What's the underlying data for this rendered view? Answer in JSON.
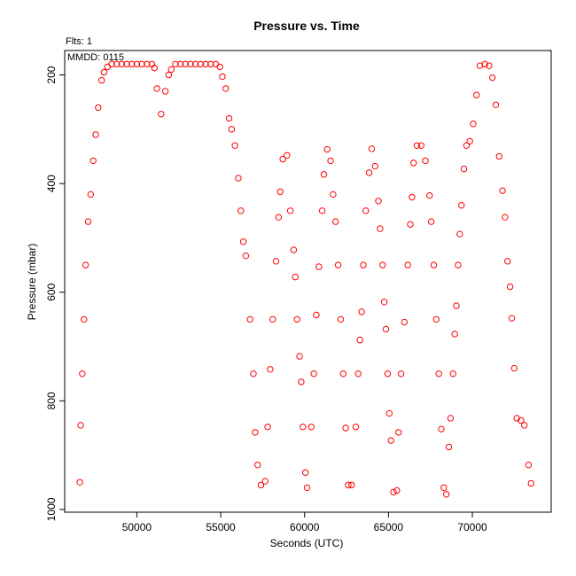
{
  "chart_data": {
    "type": "scatter",
    "title": "Pressure  vs. Time",
    "flts_label": "Flts: 1",
    "mmdd_label": "MMDD: 0115",
    "xlabel": "Seconds (UTC)",
    "ylabel": "Pressure (mbar)",
    "xlim": [
      45700,
      74700
    ],
    "ylim": [
      1005,
      155
    ],
    "y_inverted": true,
    "x_ticks": [
      50000,
      55000,
      60000,
      65000,
      70000
    ],
    "y_ticks": [
      200,
      400,
      600,
      800,
      1000
    ],
    "x_tick_labels": [
      "50000",
      "55000",
      "60000",
      "65000",
      "70000"
    ],
    "y_tick_labels": [
      "200",
      "400",
      "600",
      "800",
      "1000"
    ],
    "grid": false,
    "marker": "open-circle",
    "marker_color": "#ff0000",
    "points": [
      [
        46600,
        950
      ],
      [
        46650,
        845
      ],
      [
        46750,
        750
      ],
      [
        46850,
        650
      ],
      [
        46950,
        550
      ],
      [
        47100,
        470
      ],
      [
        47250,
        420
      ],
      [
        47400,
        358
      ],
      [
        47550,
        310
      ],
      [
        47700,
        260
      ],
      [
        47900,
        210
      ],
      [
        48050,
        195
      ],
      [
        48250,
        185
      ],
      [
        48500,
        180
      ],
      [
        48800,
        180
      ],
      [
        49100,
        180
      ],
      [
        49400,
        180
      ],
      [
        49700,
        180
      ],
      [
        50000,
        180
      ],
      [
        50300,
        180
      ],
      [
        50600,
        180
      ],
      [
        50900,
        180
      ],
      [
        51050,
        187
      ],
      [
        51200,
        225
      ],
      [
        51450,
        272
      ],
      [
        51700,
        230
      ],
      [
        51900,
        200
      ],
      [
        52050,
        190
      ],
      [
        52300,
        180
      ],
      [
        52600,
        180
      ],
      [
        52900,
        180
      ],
      [
        53200,
        180
      ],
      [
        53500,
        180
      ],
      [
        53800,
        180
      ],
      [
        54100,
        180
      ],
      [
        54400,
        180
      ],
      [
        54700,
        180
      ],
      [
        54950,
        185
      ],
      [
        55100,
        203
      ],
      [
        55300,
        225
      ],
      [
        55500,
        280
      ],
      [
        55650,
        300
      ],
      [
        55850,
        330
      ],
      [
        56050,
        390
      ],
      [
        56200,
        450
      ],
      [
        56350,
        507
      ],
      [
        56500,
        533
      ],
      [
        56750,
        650
      ],
      [
        56950,
        750
      ],
      [
        57050,
        858
      ],
      [
        57200,
        918
      ],
      [
        57400,
        955
      ],
      [
        57650,
        948
      ],
      [
        57800,
        848
      ],
      [
        57950,
        742
      ],
      [
        58100,
        650
      ],
      [
        58300,
        543
      ],
      [
        58450,
        462
      ],
      [
        58550,
        415
      ],
      [
        58700,
        355
      ],
      [
        58950,
        348
      ],
      [
        59150,
        450
      ],
      [
        59350,
        522
      ],
      [
        59450,
        572
      ],
      [
        59550,
        650
      ],
      [
        59700,
        718
      ],
      [
        59800,
        765
      ],
      [
        59900,
        848
      ],
      [
        60050,
        932
      ],
      [
        60150,
        960
      ],
      [
        60400,
        848
      ],
      [
        60550,
        750
      ],
      [
        60700,
        642
      ],
      [
        60850,
        553
      ],
      [
        61050,
        450
      ],
      [
        61150,
        383
      ],
      [
        61350,
        337
      ],
      [
        61550,
        358
      ],
      [
        61700,
        420
      ],
      [
        61850,
        470
      ],
      [
        62000,
        550
      ],
      [
        62150,
        650
      ],
      [
        62300,
        750
      ],
      [
        62450,
        850
      ],
      [
        62600,
        955
      ],
      [
        62800,
        955
      ],
      [
        63050,
        848
      ],
      [
        63200,
        750
      ],
      [
        63300,
        688
      ],
      [
        63400,
        636
      ],
      [
        63500,
        550
      ],
      [
        63650,
        450
      ],
      [
        63850,
        380
      ],
      [
        64000,
        336
      ],
      [
        64200,
        368
      ],
      [
        64400,
        432
      ],
      [
        64500,
        483
      ],
      [
        64650,
        550
      ],
      [
        64750,
        618
      ],
      [
        64850,
        668
      ],
      [
        64950,
        750
      ],
      [
        65050,
        823
      ],
      [
        65150,
        873
      ],
      [
        65300,
        968
      ],
      [
        65500,
        965
      ],
      [
        65600,
        858
      ],
      [
        65750,
        750
      ],
      [
        65950,
        655
      ],
      [
        66150,
        550
      ],
      [
        66300,
        475
      ],
      [
        66400,
        425
      ],
      [
        66500,
        362
      ],
      [
        66700,
        330
      ],
      [
        66950,
        330
      ],
      [
        67200,
        358
      ],
      [
        67450,
        422
      ],
      [
        67550,
        470
      ],
      [
        67700,
        550
      ],
      [
        67850,
        650
      ],
      [
        68000,
        750
      ],
      [
        68150,
        852
      ],
      [
        68300,
        960
      ],
      [
        68450,
        972
      ],
      [
        68600,
        885
      ],
      [
        68700,
        832
      ],
      [
        68850,
        750
      ],
      [
        68950,
        677
      ],
      [
        69050,
        625
      ],
      [
        69150,
        550
      ],
      [
        69250,
        493
      ],
      [
        69350,
        440
      ],
      [
        69500,
        373
      ],
      [
        69650,
        330
      ],
      [
        69850,
        322
      ],
      [
        70050,
        290
      ],
      [
        70250,
        237
      ],
      [
        70450,
        183
      ],
      [
        70750,
        180
      ],
      [
        71000,
        183
      ],
      [
        71200,
        205
      ],
      [
        71400,
        255
      ],
      [
        71600,
        350
      ],
      [
        71800,
        413
      ],
      [
        71950,
        462
      ],
      [
        72100,
        543
      ],
      [
        72250,
        590
      ],
      [
        72350,
        648
      ],
      [
        72500,
        740
      ],
      [
        72650,
        832
      ],
      [
        72900,
        836
      ],
      [
        73100,
        845
      ],
      [
        73350,
        918
      ],
      [
        73500,
        952
      ]
    ]
  }
}
